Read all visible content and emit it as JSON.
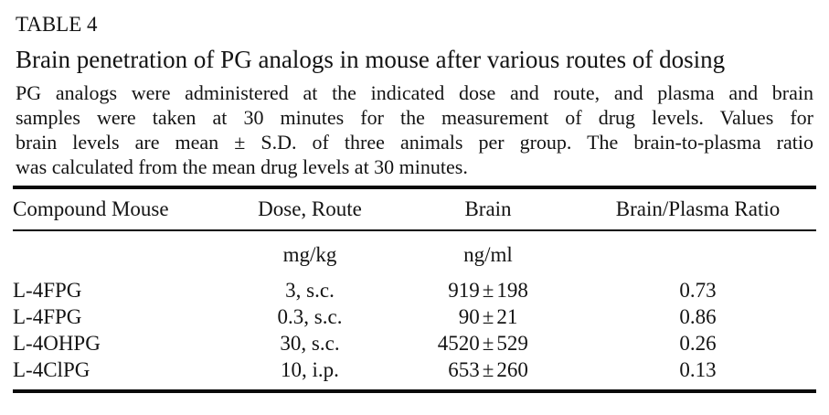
{
  "header": {
    "table_label": "TABLE 4",
    "title": "Brain penetration of PG analogs in mouse after various routes of dosing",
    "caption_lines": [
      "PG analogs were administered at the indicated dose and route, and plasma and brain",
      "samples were taken at 30 minutes for the measurement of drug levels. Values for",
      "brain levels are mean ± S.D. of three animals per group. The brain-to-plasma ratio",
      "was calculated from the mean drug levels at 30 minutes."
    ]
  },
  "table": {
    "columns": {
      "compound": "Compound Mouse",
      "dose": "Dose, Route",
      "brain": "Brain",
      "ratio": "Brain/Plasma Ratio"
    },
    "units": {
      "dose": "mg/kg",
      "brain": "ng/ml"
    },
    "plus_minus": "±",
    "rows": [
      {
        "compound": "L-4FPG",
        "dose_route": "3, s.c.",
        "brain_mean": "919",
        "brain_sd": "198",
        "ratio": "0.73"
      },
      {
        "compound": "L-4FPG",
        "dose_route": "0.3, s.c.",
        "brain_mean": "90",
        "brain_sd": "21",
        "ratio": "0.86"
      },
      {
        "compound": "L-4OHPG",
        "dose_route": "30, s.c.",
        "brain_mean": "4520",
        "brain_sd": "529",
        "ratio": "0.26"
      },
      {
        "compound": "L-4ClPG",
        "dose_route": "10, i.p.",
        "brain_mean": "653",
        "brain_sd": "260",
        "ratio": "0.13"
      }
    ]
  },
  "colors": {
    "text": "#131313",
    "background": "#ffffff",
    "rule": "#0a0a0a"
  }
}
